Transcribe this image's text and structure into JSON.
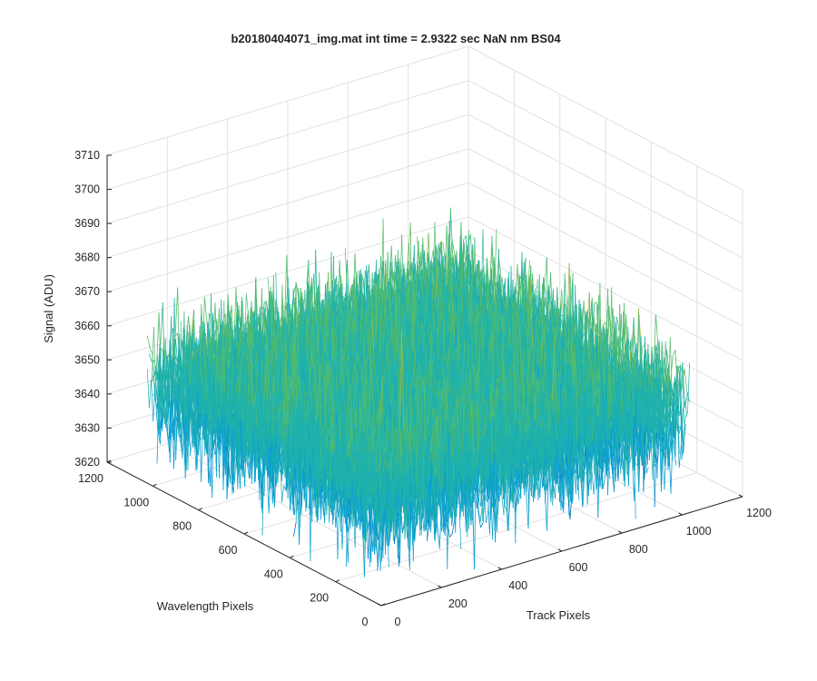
{
  "chart_data": {
    "type": "surface",
    "title": "b20180404071_img.mat int time = 2.9322 sec  NaN nm BS04",
    "xlabel": "Track Pixels",
    "ylabel": "Wavelength Pixels",
    "zlabel": "Signal (ADU)",
    "x_range": [
      0,
      1200
    ],
    "y_range": [
      0,
      1200
    ],
    "z_range": [
      3620,
      3710
    ],
    "x_ticks": [
      "0",
      "200",
      "400",
      "600",
      "800",
      "1000",
      "1200"
    ],
    "y_ticks": [
      "0",
      "200",
      "400",
      "600",
      "800",
      "1000",
      "1200"
    ],
    "z_ticks": [
      "3620",
      "3630",
      "3640",
      "3650",
      "3660",
      "3670",
      "3680",
      "3690",
      "3700",
      "3710"
    ],
    "data_extent": {
      "x": [
        0,
        1024
      ],
      "y": [
        0,
        1024
      ]
    },
    "signal_mean": 3650,
    "signal_min": 3620,
    "signal_max": 3695,
    "grid": true,
    "colormap": [
      "#0072bd",
      "#0b9fd0",
      "#20b2aa",
      "#55bc6b",
      "#a8bf3c",
      "#e8ba2a"
    ]
  }
}
